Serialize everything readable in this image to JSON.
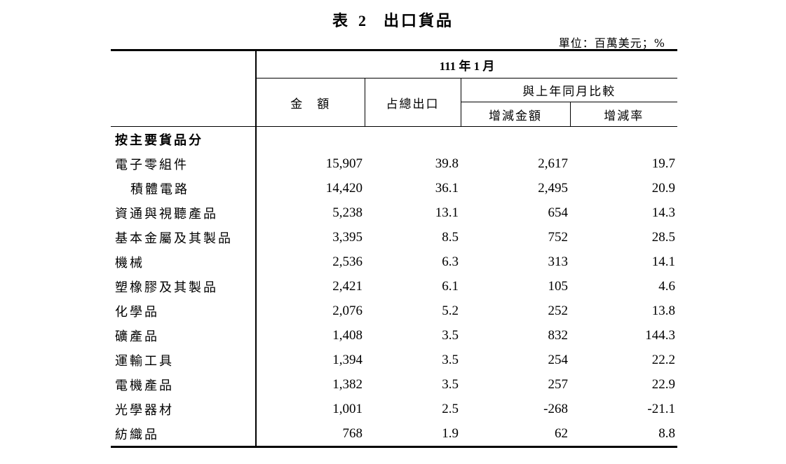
{
  "title": {
    "prefix": "表",
    "number": "2",
    "text": "出口貨品"
  },
  "unit": "單位：百萬美元；%",
  "header": {
    "period": "111 年 1 月",
    "amount": "金　額",
    "share": "占總出口",
    "compare": "與上年同月比較",
    "change_amount": "增減金額",
    "change_rate": "增減率"
  },
  "section_label": "按主要貨品分",
  "rows": [
    {
      "label": "電子零組件",
      "amount": "15,907",
      "share": "39.8",
      "change": "2,617",
      "rate": "19.7"
    },
    {
      "label": "積體電路",
      "amount": "14,420",
      "share": "36.1",
      "change": "2,495",
      "rate": "20.9"
    },
    {
      "label": "資通與視聽產品",
      "amount": "5,238",
      "share": "13.1",
      "change": "654",
      "rate": "14.3"
    },
    {
      "label": "基本金屬及其製品",
      "amount": "3,395",
      "share": "8.5",
      "change": "752",
      "rate": "28.5"
    },
    {
      "label": "機械",
      "amount": "2,536",
      "share": "6.3",
      "change": "313",
      "rate": "14.1"
    },
    {
      "label": "塑橡膠及其製品",
      "amount": "2,421",
      "share": "6.1",
      "change": "105",
      "rate": "4.6"
    },
    {
      "label": "化學品",
      "amount": "2,076",
      "share": "5.2",
      "change": "252",
      "rate": "13.8"
    },
    {
      "label": "礦產品",
      "amount": "1,408",
      "share": "3.5",
      "change": "832",
      "rate": "144.3"
    },
    {
      "label": "運輸工具",
      "amount": "1,394",
      "share": "3.5",
      "change": "254",
      "rate": "22.2"
    },
    {
      "label": "電機產品",
      "amount": "1,382",
      "share": "3.5",
      "change": "257",
      "rate": "22.9"
    },
    {
      "label": "光學器材",
      "amount": "1,001",
      "share": "2.5",
      "change": "-268",
      "rate": "-21.1"
    },
    {
      "label": "紡織品",
      "amount": "768",
      "share": "1.9",
      "change": "62",
      "rate": "8.8"
    }
  ]
}
